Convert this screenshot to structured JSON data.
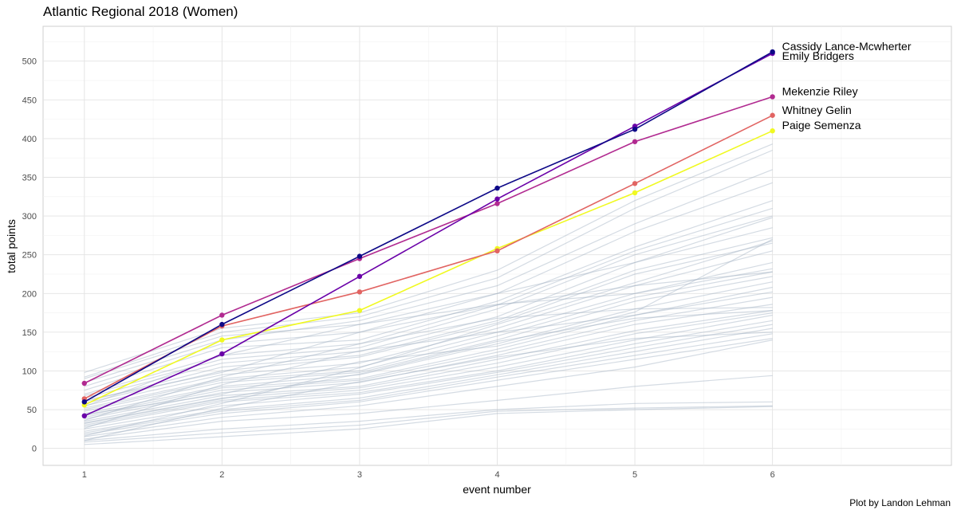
{
  "chart_data": {
    "type": "line",
    "title": "Atlantic Regional 2018 (Women)",
    "xlabel": "event number",
    "ylabel": "total points",
    "caption": "Plot by Landon Lehman",
    "x": [
      1,
      2,
      3,
      4,
      5,
      6
    ],
    "xlim": [
      0.7,
      7.3
    ],
    "ylim": [
      -22,
      545
    ],
    "x_ticks": [
      1,
      2,
      3,
      4,
      5,
      6
    ],
    "y_ticks": [
      0,
      50,
      100,
      150,
      200,
      250,
      300,
      350,
      400,
      450,
      500
    ],
    "grid": true,
    "legend": "none",
    "highlighted": [
      {
        "name": "Cassidy Lance-Mcwherter",
        "color": "#0d0887",
        "values": [
          60,
          160,
          248,
          336,
          412,
          512
        ]
      },
      {
        "name": "Emily Bridgers",
        "color": "#6a00a8",
        "values": [
          42,
          122,
          222,
          322,
          416,
          510
        ]
      },
      {
        "name": "Mekenzie Riley",
        "color": "#b12a90",
        "values": [
          84,
          172,
          245,
          316,
          396,
          454
        ]
      },
      {
        "name": "Whitney Gelin",
        "color": "#e16462",
        "values": [
          64,
          158,
          202,
          255,
          342,
          430
        ]
      },
      {
        "name": "Paige Semenza",
        "color": "#f0f921",
        "values": [
          56,
          140,
          178,
          258,
          330,
          410
        ]
      }
    ],
    "background_color": "#9fb0c2",
    "background": [
      [
        98,
        155,
        175,
        230,
        320,
        393
      ],
      [
        92,
        150,
        170,
        220,
        310,
        385
      ],
      [
        85,
        140,
        165,
        210,
        290,
        360
      ],
      [
        80,
        135,
        150,
        200,
        280,
        343
      ],
      [
        75,
        130,
        140,
        190,
        260,
        320
      ],
      [
        70,
        120,
        135,
        185,
        255,
        310
      ],
      [
        68,
        115,
        130,
        180,
        250,
        300
      ],
      [
        65,
        110,
        125,
        170,
        240,
        285
      ],
      [
        60,
        105,
        120,
        165,
        230,
        272
      ],
      [
        58,
        100,
        118,
        162,
        225,
        265
      ],
      [
        55,
        95,
        110,
        155,
        210,
        255
      ],
      [
        52,
        90,
        105,
        150,
        200,
        240
      ],
      [
        50,
        88,
        100,
        145,
        195,
        228
      ],
      [
        48,
        85,
        98,
        140,
        190,
        222
      ],
      [
        45,
        80,
        95,
        135,
        180,
        215
      ],
      [
        42,
        78,
        90,
        128,
        172,
        202
      ],
      [
        40,
        75,
        88,
        124,
        165,
        195
      ],
      [
        38,
        72,
        85,
        120,
        160,
        186
      ],
      [
        35,
        68,
        80,
        115,
        152,
        178
      ],
      [
        33,
        65,
        78,
        110,
        148,
        175
      ],
      [
        30,
        62,
        75,
        105,
        140,
        172
      ],
      [
        28,
        60,
        72,
        100,
        135,
        165
      ],
      [
        25,
        55,
        70,
        98,
        130,
        160
      ],
      [
        22,
        50,
        65,
        95,
        125,
        155
      ],
      [
        20,
        48,
        62,
        92,
        120,
        148
      ],
      [
        18,
        45,
        60,
        88,
        115,
        142
      ],
      [
        15,
        40,
        55,
        80,
        105,
        140
      ],
      [
        12,
        35,
        45,
        62,
        80,
        94
      ],
      [
        10,
        25,
        35,
        50,
        58,
        60
      ],
      [
        8,
        20,
        30,
        48,
        52,
        55
      ],
      [
        5,
        15,
        25,
        45,
        50,
        54
      ],
      [
        90,
        145,
        160,
        200,
        240,
        298
      ],
      [
        62,
        98,
        150,
        185,
        210,
        228
      ],
      [
        36,
        92,
        135,
        168,
        180,
        182
      ],
      [
        26,
        82,
        126,
        150,
        172,
        208
      ],
      [
        44,
        70,
        112,
        132,
        176,
        270
      ],
      [
        16,
        58,
        104,
        160,
        214,
        268
      ],
      [
        54,
        120,
        160,
        186,
        200,
        232
      ],
      [
        32,
        64,
        96,
        138,
        168,
        178
      ],
      [
        10,
        52,
        86,
        118,
        142,
        150
      ]
    ]
  }
}
